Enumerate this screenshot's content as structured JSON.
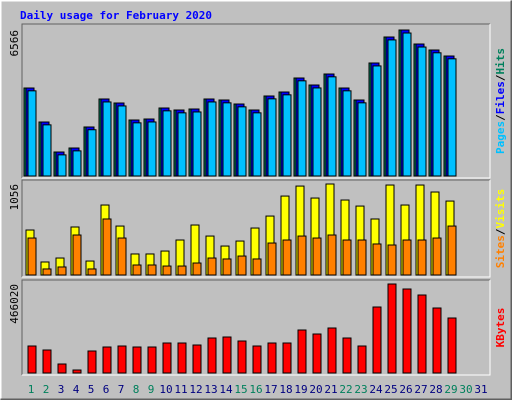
{
  "chart_data": {
    "type": "bar",
    "title": "Daily usage for February 2020",
    "categories": [
      "1",
      "2",
      "3",
      "4",
      "5",
      "6",
      "7",
      "8",
      "9",
      "10",
      "11",
      "12",
      "13",
      "14",
      "15",
      "16",
      "17",
      "18",
      "19",
      "20",
      "21",
      "22",
      "23",
      "24",
      "25",
      "26",
      "27",
      "28",
      "29",
      "30",
      "31"
    ],
    "category_colors": [
      "#00805c",
      "#00805c",
      "#000080",
      "#000080",
      "#000080",
      "#000080",
      "#000080",
      "#00805c",
      "#00805c",
      "#000080",
      "#000080",
      "#000080",
      "#000080",
      "#000080",
      "#00805c",
      "#00805c",
      "#000080",
      "#000080",
      "#000080",
      "#000080",
      "#000080",
      "#00805c",
      "#00805c",
      "#000080",
      "#000080",
      "#000080",
      "#000080",
      "#000080",
      "#00805c",
      "#00805c",
      "#000080"
    ],
    "legend_separator": "/",
    "panels": [
      {
        "ylim": [
          0,
          6566
        ],
        "yticks": [
          6566
        ],
        "series": [
          {
            "name": "Hits",
            "color": "#00805c",
            "values": [
              3957,
              2428,
              1079,
              1259,
              2204,
              3463,
              3283,
              2518,
              2563,
              3058,
              2968,
              3013,
              3463,
              3418,
              3238,
              2968,
              3598,
              3777,
              4407,
              4092,
              4587,
              3957,
              3418,
              5082,
              6251,
              6566,
              5936,
              5666,
              5396,
              null,
              null
            ]
          },
          {
            "name": "Files",
            "color": "#0000ff",
            "values": [
              3957,
              2428,
              1079,
              1259,
              2204,
              3463,
              3283,
              2518,
              2563,
              3058,
              2968,
              3013,
              3463,
              3418,
              3238,
              2968,
              3598,
              3777,
              4407,
              4092,
              4587,
              3957,
              3418,
              5082,
              6251,
              6566,
              5936,
              5666,
              5396,
              null,
              null
            ]
          },
          {
            "name": "Pages",
            "color": "#00c0ff",
            "values": [
              3830,
              2300,
              950,
              1130,
              2080,
              3330,
              3150,
              2390,
              2430,
              2930,
              2840,
              2880,
              3330,
              3290,
              3110,
              2840,
              3470,
              3650,
              4280,
              3960,
              4460,
              3830,
              3290,
              4950,
              6120,
              6430,
              5800,
              5540,
              5270,
              null,
              null
            ]
          }
        ]
      },
      {
        "ylim": [
          0,
          1056
        ],
        "yticks": [
          1056
        ],
        "series": [
          {
            "name": "Visits",
            "color": "#ffff00",
            "values": [
              522,
              151,
              197,
              557,
              162,
              812,
              568,
              244,
              244,
              278,
              406,
              580,
              452,
              336,
              394,
              545,
              684,
              916,
              1032,
              893,
              1056,
              870,
              800,
              650,
              1044,
              812,
              1044,
              963,
              858,
              null,
              null
            ]
          },
          {
            "name": "Sites",
            "color": "#ff8000",
            "values": [
              429,
              70,
              93,
              464,
              70,
              650,
              429,
              116,
              116,
              104,
              104,
              139,
              197,
              186,
              220,
              186,
              371,
              406,
              452,
              429,
              464,
              406,
              406,
              360,
              348,
              406,
              406,
              429,
              568,
              null,
              null
            ]
          }
        ]
      },
      {
        "ylim": [
          0,
          466020
        ],
        "yticks": [
          466020
        ],
        "series": [
          {
            "name": "KBytes",
            "color": "#ff0000",
            "values": [
              141372,
              120428,
              47124,
              15708,
              115192,
              136136,
              141372,
              136136,
              136136,
              157080,
              157080,
              146608,
              183260,
              188496,
              167552,
              141372,
              157080,
              157080,
              225148,
              204204,
              235620,
              183260,
              141372,
              345576,
              466020,
              439824,
              408408,
              340340,
              287980,
              null,
              null
            ]
          }
        ]
      }
    ]
  }
}
